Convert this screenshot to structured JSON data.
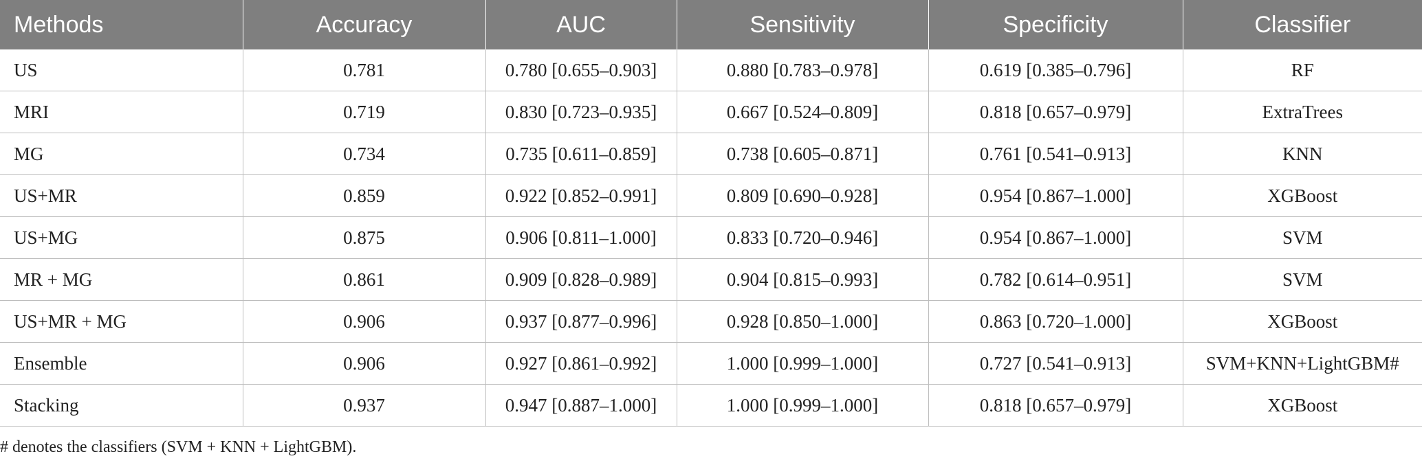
{
  "table": {
    "headers": [
      "Methods",
      "Accuracy",
      "AUC",
      "Sensitivity",
      "Specificity",
      "Classifier"
    ],
    "rows": [
      [
        "US",
        "0.781",
        "0.780 [0.655–0.903]",
        "0.880 [0.783–0.978]",
        "0.619 [0.385–0.796]",
        "RF"
      ],
      [
        "MRI",
        "0.719",
        "0.830 [0.723–0.935]",
        "0.667 [0.524–0.809]",
        "0.818 [0.657–0.979]",
        "ExtraTrees"
      ],
      [
        "MG",
        "0.734",
        "0.735 [0.611–0.859]",
        "0.738 [0.605–0.871]",
        "0.761 [0.541–0.913]",
        "KNN"
      ],
      [
        "US+MR",
        "0.859",
        "0.922 [0.852–0.991]",
        "0.809 [0.690–0.928]",
        "0.954 [0.867–1.000]",
        "XGBoost"
      ],
      [
        "US+MG",
        "0.875",
        "0.906 [0.811–1.000]",
        "0.833 [0.720–0.946]",
        "0.954 [0.867–1.000]",
        "SVM"
      ],
      [
        "MR + MG",
        "0.861",
        "0.909 [0.828–0.989]",
        "0.904 [0.815–0.993]",
        "0.782 [0.614–0.951]",
        "SVM"
      ],
      [
        "US+MR + MG",
        "0.906",
        "0.937 [0.877–0.996]",
        "0.928 [0.850–1.000]",
        "0.863 [0.720–1.000]",
        "XGBoost"
      ],
      [
        "Ensemble",
        "0.906",
        "0.927 [0.861–0.992]",
        "1.000 [0.999–1.000]",
        "0.727 [0.541–0.913]",
        "SVM+KNN+LightGBM#"
      ],
      [
        "Stacking",
        "0.937",
        "0.947 [0.887–1.000]",
        "1.000 [0.999–1.000]",
        "0.818 [0.657–0.979]",
        "XGBoost"
      ]
    ]
  },
  "footnote": "# denotes the classifiers (SVM + KNN + LightGBM).",
  "colors": {
    "header_background": "#7f7f7f",
    "header_text": "#ffffff",
    "grid_line": "#bdbdbd",
    "body_text": "#222222"
  }
}
